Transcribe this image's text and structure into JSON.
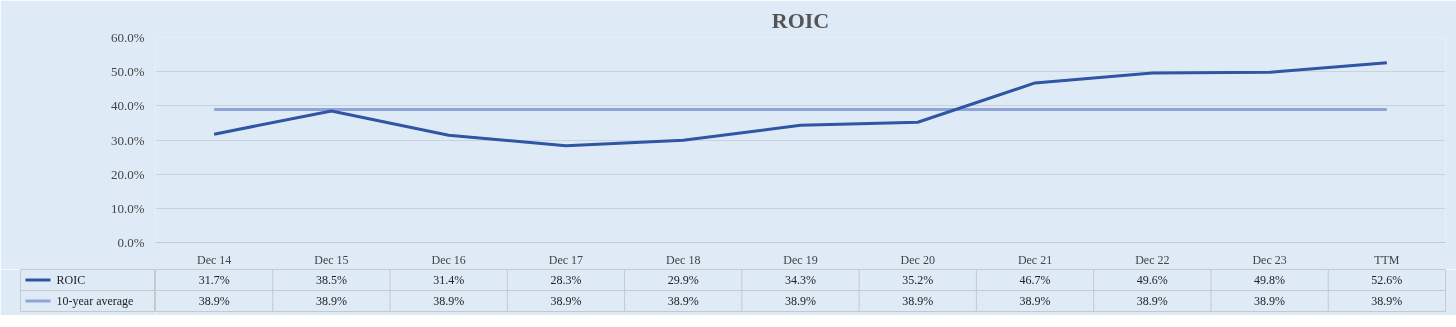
{
  "chart_data": {
    "type": "line",
    "title": "ROIC",
    "categories": [
      "Dec 14",
      "Dec 15",
      "Dec 16",
      "Dec 17",
      "Dec 18",
      "Dec 19",
      "Dec 20",
      "Dec 21",
      "Dec 22",
      "Dec 23",
      "TTM"
    ],
    "series": [
      {
        "name": "ROIC",
        "color": "#2f55a4",
        "values": [
          31.7,
          38.5,
          31.4,
          28.3,
          29.9,
          34.3,
          35.2,
          46.7,
          49.6,
          49.8,
          52.6
        ],
        "value_labels": [
          "31.7%",
          "38.5%",
          "31.4%",
          "28.3%",
          "29.9%",
          "34.3%",
          "35.2%",
          "46.7%",
          "49.6%",
          "49.8%",
          "52.6%"
        ]
      },
      {
        "name": "10-year average",
        "color": "#8fa4d8",
        "values": [
          38.9,
          38.9,
          38.9,
          38.9,
          38.9,
          38.9,
          38.9,
          38.9,
          38.9,
          38.9,
          38.9
        ],
        "value_labels": [
          "38.9%",
          "38.9%",
          "38.9%",
          "38.9%",
          "38.9%",
          "38.9%",
          "38.9%",
          "38.9%",
          "38.9%",
          "38.9%",
          "38.9%"
        ]
      }
    ],
    "ylim": [
      0,
      60
    ],
    "yticks": [
      {
        "value": 0,
        "label": "0.0%"
      },
      {
        "value": 10,
        "label": "10.0%"
      },
      {
        "value": 20,
        "label": "20.0%"
      },
      {
        "value": 30,
        "label": "30.0%"
      },
      {
        "value": 40,
        "label": "40.0%"
      },
      {
        "value": 50,
        "label": "50.0%"
      },
      {
        "value": 60,
        "label": "60.0%"
      }
    ],
    "grid": "y",
    "legend": "bottom",
    "marker": "none",
    "line_style": "solid"
  }
}
